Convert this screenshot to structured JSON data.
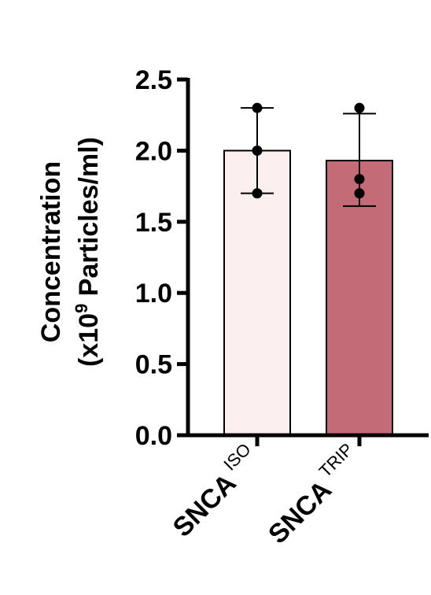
{
  "chart_data": {
    "type": "bar",
    "ylabel_line1": "Concentration",
    "ylabel_line2_prefix": "(x10",
    "ylabel_line2_sup": "9",
    "ylabel_line2_suffix": " Particles/ml)",
    "ylim": [
      0,
      2.5
    ],
    "yticks": [
      "0.0",
      "0.5",
      "1.0",
      "1.5",
      "2.0",
      "2.5"
    ],
    "categories": [
      {
        "main": "SNCA",
        "sup": "ISO"
      },
      {
        "main": "SNCA",
        "sup": "TRIP"
      }
    ],
    "values": [
      2.0,
      1.93
    ],
    "error": [
      {
        "low": 1.7,
        "high": 2.3
      },
      {
        "low": 1.61,
        "high": 2.26
      }
    ],
    "points": [
      [
        1.7,
        2.0,
        2.3
      ],
      [
        1.7,
        1.8,
        2.3
      ]
    ],
    "colors": [
      "#fcefef",
      "#c46b78"
    ]
  }
}
